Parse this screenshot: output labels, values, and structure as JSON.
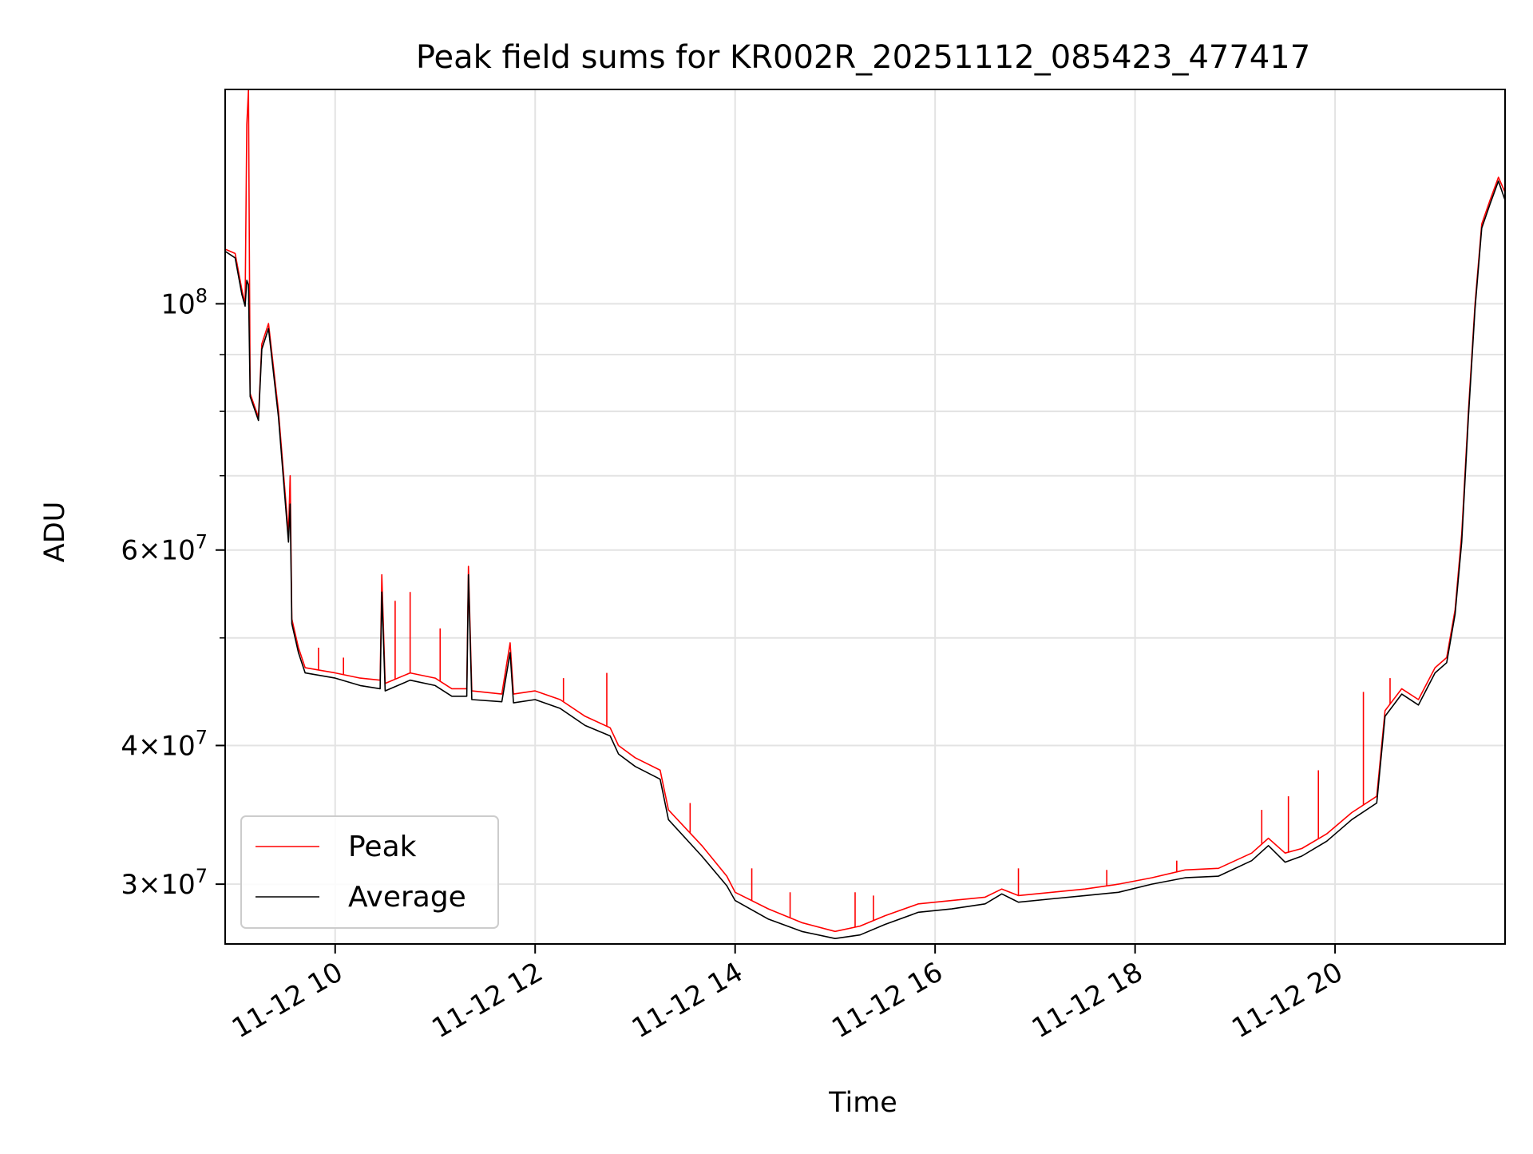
{
  "chart_data": {
    "type": "line",
    "title": "Peak field sums for KR002R_20251112_085423_477417",
    "xlabel": "Time",
    "ylabel": "ADU",
    "yscale": "log",
    "ylim": [
      26500000,
      156000000
    ],
    "xlim": [
      "2025-11-12 08:54",
      "2025-11-12 21:42"
    ],
    "grid": true,
    "legend_position": "lower-left",
    "x_ticks": [
      {
        "time": "2025-11-12 10:00",
        "label": "11-12 10"
      },
      {
        "time": "2025-11-12 12:00",
        "label": "11-12 12"
      },
      {
        "time": "2025-11-12 14:00",
        "label": "11-12 14"
      },
      {
        "time": "2025-11-12 16:00",
        "label": "11-12 16"
      },
      {
        "time": "2025-11-12 18:00",
        "label": "11-12 18"
      },
      {
        "time": "2025-11-12 20:00",
        "label": "11-12 20"
      }
    ],
    "y_ticks": [
      {
        "value": 30000000,
        "label_base": "3×10",
        "label_exp": "7"
      },
      {
        "value": 40000000,
        "label_base": "4×10",
        "label_exp": "7"
      },
      {
        "value": 60000000,
        "label_base": "6×10",
        "label_exp": "7"
      },
      {
        "value": 100000000,
        "label_base": "10",
        "label_exp": "8"
      }
    ],
    "y_minor_ticks": [
      50000000,
      70000000,
      80000000,
      90000000
    ],
    "series": [
      {
        "name": "Peak",
        "color": "#ff0000",
        "points": [
          [
            "2025-11-12 08:54",
            112000000
          ],
          [
            "2025-11-12 09:00",
            111000000
          ],
          [
            "2025-11-12 09:04",
            103000000
          ],
          [
            "2025-11-12 09:06",
            100000000
          ],
          [
            "2025-11-12 09:07",
            145000000
          ],
          [
            "2025-11-12 09:08",
            156000000
          ],
          [
            "2025-11-12 09:09",
            83000000
          ],
          [
            "2025-11-12 09:14",
            79000000
          ],
          [
            "2025-11-12 09:16",
            92000000
          ],
          [
            "2025-11-12 09:20",
            96000000
          ],
          [
            "2025-11-12 09:26",
            80000000
          ],
          [
            "2025-11-12 09:32",
            62000000
          ],
          [
            "2025-11-12 09:33",
            70000000
          ],
          [
            "2025-11-12 09:34",
            52000000
          ],
          [
            "2025-11-12 09:38",
            49000000
          ],
          [
            "2025-11-12 09:42",
            47000000
          ],
          [
            "2025-11-12 10:00",
            46500000
          ],
          [
            "2025-11-12 10:15",
            46000000
          ],
          [
            "2025-11-12 10:27",
            45800000
          ],
          [
            "2025-11-12 10:28",
            57000000
          ],
          [
            "2025-11-12 10:30",
            45500000
          ],
          [
            "2025-11-12 10:45",
            46500000
          ],
          [
            "2025-11-12 11:00",
            46000000
          ],
          [
            "2025-11-12 11:10",
            45000000
          ],
          [
            "2025-11-12 11:19",
            45000000
          ],
          [
            "2025-11-12 11:20",
            58000000
          ],
          [
            "2025-11-12 11:22",
            44800000
          ],
          [
            "2025-11-12 11:40",
            44500000
          ],
          [
            "2025-11-12 11:45",
            49500000
          ],
          [
            "2025-11-12 11:47",
            44500000
          ],
          [
            "2025-11-12 12:00",
            44800000
          ],
          [
            "2025-11-12 12:15",
            44000000
          ],
          [
            "2025-11-12 12:30",
            42500000
          ],
          [
            "2025-11-12 12:45",
            41500000
          ],
          [
            "2025-11-12 12:50",
            40000000
          ],
          [
            "2025-11-12 13:00",
            39000000
          ],
          [
            "2025-11-12 13:15",
            38000000
          ],
          [
            "2025-11-12 13:20",
            35000000
          ],
          [
            "2025-11-12 13:40",
            32500000
          ],
          [
            "2025-11-12 13:55",
            30500000
          ],
          [
            "2025-11-12 14:00",
            29500000
          ],
          [
            "2025-11-12 14:20",
            28500000
          ],
          [
            "2025-11-12 14:40",
            27700000
          ],
          [
            "2025-11-12 15:00",
            27200000
          ],
          [
            "2025-11-12 15:15",
            27500000
          ],
          [
            "2025-11-12 15:30",
            28100000
          ],
          [
            "2025-11-12 15:50",
            28800000
          ],
          [
            "2025-11-12 16:10",
            29000000
          ],
          [
            "2025-11-12 16:30",
            29200000
          ],
          [
            "2025-11-12 16:40",
            29700000
          ],
          [
            "2025-11-12 16:50",
            29300000
          ],
          [
            "2025-11-12 17:10",
            29500000
          ],
          [
            "2025-11-12 17:30",
            29700000
          ],
          [
            "2025-11-12 17:50",
            30000000
          ],
          [
            "2025-11-12 18:10",
            30400000
          ],
          [
            "2025-11-12 18:30",
            30900000
          ],
          [
            "2025-11-12 18:50",
            31000000
          ],
          [
            "2025-11-12 19:10",
            32000000
          ],
          [
            "2025-11-12 19:20",
            33000000
          ],
          [
            "2025-11-12 19:30",
            32000000
          ],
          [
            "2025-11-12 19:40",
            32300000
          ],
          [
            "2025-11-12 19:55",
            33300000
          ],
          [
            "2025-11-12 20:10",
            34800000
          ],
          [
            "2025-11-12 20:25",
            36000000
          ],
          [
            "2025-11-12 20:30",
            43000000
          ],
          [
            "2025-11-12 20:40",
            45000000
          ],
          [
            "2025-11-12 20:50",
            44000000
          ],
          [
            "2025-11-12 21:00",
            47000000
          ],
          [
            "2025-11-12 21:07",
            48000000
          ],
          [
            "2025-11-12 21:12",
            53000000
          ],
          [
            "2025-11-12 21:16",
            62000000
          ],
          [
            "2025-11-12 21:20",
            80000000
          ],
          [
            "2025-11-12 21:24",
            100000000
          ],
          [
            "2025-11-12 21:28",
            118000000
          ],
          [
            "2025-11-12 21:33",
            124000000
          ],
          [
            "2025-11-12 21:38",
            130000000
          ],
          [
            "2025-11-12 21:42",
            126000000
          ]
        ],
        "spikes": [
          [
            "2025-11-12 09:50",
            49000000
          ],
          [
            "2025-11-12 10:05",
            48000000
          ],
          [
            "2025-11-12 10:36",
            54000000
          ],
          [
            "2025-11-12 10:45",
            55000000
          ],
          [
            "2025-11-12 11:03",
            51000000
          ],
          [
            "2025-11-12 12:17",
            46000000
          ],
          [
            "2025-11-12 12:43",
            46500000
          ],
          [
            "2025-11-12 13:33",
            35500000
          ],
          [
            "2025-11-12 14:10",
            31000000
          ],
          [
            "2025-11-12 14:33",
            29500000
          ],
          [
            "2025-11-12 15:12",
            29500000
          ],
          [
            "2025-11-12 15:23",
            29300000
          ],
          [
            "2025-11-12 16:50",
            31000000
          ],
          [
            "2025-11-12 17:43",
            30900000
          ],
          [
            "2025-11-12 18:25",
            31500000
          ],
          [
            "2025-11-12 19:16",
            35000000
          ],
          [
            "2025-11-12 19:32",
            36000000
          ],
          [
            "2025-11-12 19:50",
            38000000
          ],
          [
            "2025-11-12 20:17",
            44700000
          ],
          [
            "2025-11-12 20:33",
            46000000
          ]
        ]
      },
      {
        "name": "Average",
        "color": "#000000",
        "points": [
          [
            "2025-11-12 08:54",
            111500000
          ],
          [
            "2025-11-12 09:00",
            110000000
          ],
          [
            "2025-11-12 09:04",
            102000000
          ],
          [
            "2025-11-12 09:06",
            99500000
          ],
          [
            "2025-11-12 09:07",
            105000000
          ],
          [
            "2025-11-12 09:08",
            104000000
          ],
          [
            "2025-11-12 09:09",
            82500000
          ],
          [
            "2025-11-12 09:14",
            78500000
          ],
          [
            "2025-11-12 09:16",
            91000000
          ],
          [
            "2025-11-12 09:20",
            95000000
          ],
          [
            "2025-11-12 09:26",
            79000000
          ],
          [
            "2025-11-12 09:32",
            61000000
          ],
          [
            "2025-11-12 09:33",
            66000000
          ],
          [
            "2025-11-12 09:34",
            51500000
          ],
          [
            "2025-11-12 09:38",
            48500000
          ],
          [
            "2025-11-12 09:42",
            46500000
          ],
          [
            "2025-11-12 10:00",
            46000000
          ],
          [
            "2025-11-12 10:15",
            45300000
          ],
          [
            "2025-11-12 10:27",
            45000000
          ],
          [
            "2025-11-12 10:28",
            55000000
          ],
          [
            "2025-11-12 10:30",
            44800000
          ],
          [
            "2025-11-12 10:45",
            45800000
          ],
          [
            "2025-11-12 11:00",
            45300000
          ],
          [
            "2025-11-12 11:10",
            44300000
          ],
          [
            "2025-11-12 11:19",
            44300000
          ],
          [
            "2025-11-12 11:20",
            57000000
          ],
          [
            "2025-11-12 11:22",
            44000000
          ],
          [
            "2025-11-12 11:40",
            43800000
          ],
          [
            "2025-11-12 11:45",
            48500000
          ],
          [
            "2025-11-12 11:47",
            43700000
          ],
          [
            "2025-11-12 12:00",
            44000000
          ],
          [
            "2025-11-12 12:15",
            43200000
          ],
          [
            "2025-11-12 12:30",
            41700000
          ],
          [
            "2025-11-12 12:45",
            40800000
          ],
          [
            "2025-11-12 12:50",
            39300000
          ],
          [
            "2025-11-12 13:00",
            38300000
          ],
          [
            "2025-11-12 13:15",
            37300000
          ],
          [
            "2025-11-12 13:20",
            34300000
          ],
          [
            "2025-11-12 13:40",
            31800000
          ],
          [
            "2025-11-12 13:55",
            29900000
          ],
          [
            "2025-11-12 14:00",
            29000000
          ],
          [
            "2025-11-12 14:20",
            27900000
          ],
          [
            "2025-11-12 14:40",
            27200000
          ],
          [
            "2025-11-12 15:00",
            26800000
          ],
          [
            "2025-11-12 15:15",
            27000000
          ],
          [
            "2025-11-12 15:30",
            27600000
          ],
          [
            "2025-11-12 15:50",
            28300000
          ],
          [
            "2025-11-12 16:10",
            28500000
          ],
          [
            "2025-11-12 16:30",
            28800000
          ],
          [
            "2025-11-12 16:40",
            29400000
          ],
          [
            "2025-11-12 16:50",
            28900000
          ],
          [
            "2025-11-12 17:10",
            29100000
          ],
          [
            "2025-11-12 17:30",
            29300000
          ],
          [
            "2025-11-12 17:50",
            29500000
          ],
          [
            "2025-11-12 18:10",
            30000000
          ],
          [
            "2025-11-12 18:30",
            30400000
          ],
          [
            "2025-11-12 18:50",
            30500000
          ],
          [
            "2025-11-12 19:10",
            31500000
          ],
          [
            "2025-11-12 19:20",
            32500000
          ],
          [
            "2025-11-12 19:30",
            31400000
          ],
          [
            "2025-11-12 19:40",
            31800000
          ],
          [
            "2025-11-12 19:55",
            32800000
          ],
          [
            "2025-11-12 20:10",
            34300000
          ],
          [
            "2025-11-12 20:25",
            35500000
          ],
          [
            "2025-11-12 20:30",
            42500000
          ],
          [
            "2025-11-12 20:40",
            44500000
          ],
          [
            "2025-11-12 20:50",
            43500000
          ],
          [
            "2025-11-12 21:00",
            46500000
          ],
          [
            "2025-11-12 21:07",
            47500000
          ],
          [
            "2025-11-12 21:12",
            52500000
          ],
          [
            "2025-11-12 21:16",
            61000000
          ],
          [
            "2025-11-12 21:20",
            79000000
          ],
          [
            "2025-11-12 21:24",
            99000000
          ],
          [
            "2025-11-12 21:28",
            117000000
          ],
          [
            "2025-11-12 21:33",
            123000000
          ],
          [
            "2025-11-12 21:38",
            129000000
          ],
          [
            "2025-11-12 21:42",
            124000000
          ]
        ],
        "spikes": []
      }
    ]
  }
}
